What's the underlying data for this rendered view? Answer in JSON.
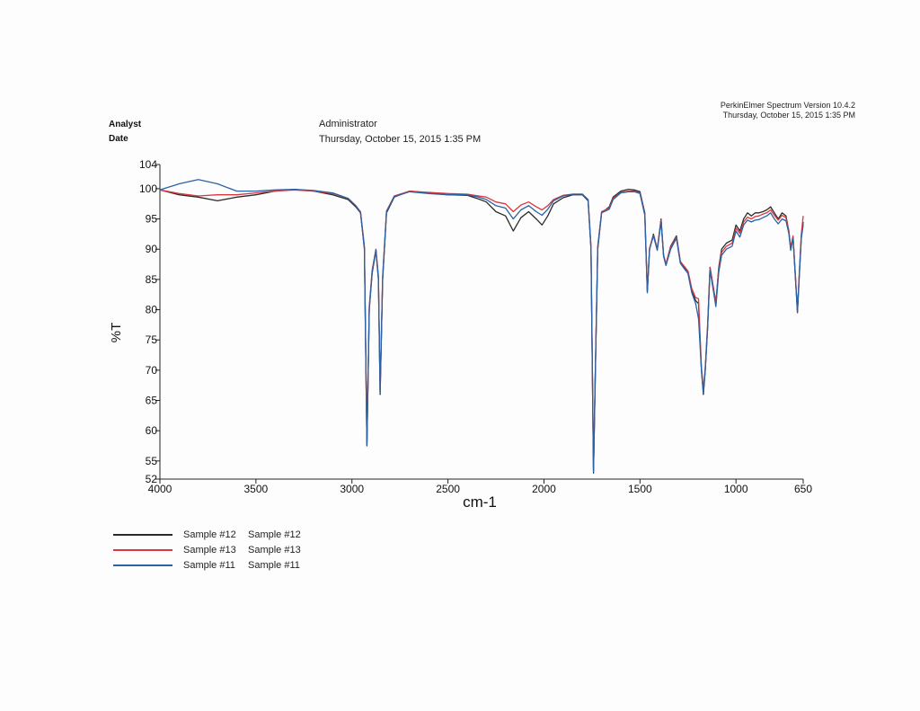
{
  "header": {
    "software": "PerkinElmer Spectrum Version 10.4.2",
    "datetime": "Thursday, October 15, 2015 1:35 PM"
  },
  "meta": {
    "analyst_label": "Analyst",
    "analyst_value": "Administrator",
    "date_label": "Date",
    "date_value": "Thursday, October 15, 2015 1:35 PM"
  },
  "colors": {
    "sample12": "#2b2b2b",
    "sample13": "#d8383f",
    "sample11": "#2a62a6"
  },
  "chart_data": {
    "type": "line",
    "title": "",
    "xlabel": "cm-1",
    "ylabel": "%T",
    "xlim": [
      4000,
      650
    ],
    "x_reversed": true,
    "ylim": [
      52,
      104
    ],
    "x_ticks": [
      4000,
      3500,
      3000,
      2500,
      2000,
      1500,
      1000,
      650
    ],
    "y_ticks": [
      52,
      55,
      60,
      65,
      70,
      75,
      80,
      85,
      90,
      95,
      100,
      104
    ],
    "grid": false,
    "legend_placement": "bottom-left",
    "series": [
      {
        "name": "Sample #12",
        "label2": "Sample #12",
        "color": "#2b2b2b",
        "points": [
          [
            4000,
            99.8
          ],
          [
            3900,
            99.0
          ],
          [
            3800,
            98.6
          ],
          [
            3700,
            98.0
          ],
          [
            3600,
            98.6
          ],
          [
            3500,
            99.0
          ],
          [
            3400,
            99.6
          ],
          [
            3300,
            99.9
          ],
          [
            3200,
            99.6
          ],
          [
            3100,
            99.0
          ],
          [
            3020,
            98.2
          ],
          [
            2980,
            97.0
          ],
          [
            2955,
            96.0
          ],
          [
            2935,
            90.0
          ],
          [
            2922,
            57.5
          ],
          [
            2910,
            80.0
          ],
          [
            2895,
            86.0
          ],
          [
            2875,
            89.8
          ],
          [
            2862,
            85.0
          ],
          [
            2853,
            66.0
          ],
          [
            2840,
            85.0
          ],
          [
            2820,
            96.0
          ],
          [
            2780,
            98.6
          ],
          [
            2700,
            99.6
          ],
          [
            2600,
            99.3
          ],
          [
            2500,
            99.0
          ],
          [
            2400,
            98.9
          ],
          [
            2340,
            98.3
          ],
          [
            2300,
            97.8
          ],
          [
            2250,
            96.2
          ],
          [
            2200,
            95.5
          ],
          [
            2160,
            93.0
          ],
          [
            2120,
            95.2
          ],
          [
            2080,
            96.2
          ],
          [
            2040,
            95.0
          ],
          [
            2010,
            94.0
          ],
          [
            1980,
            95.5
          ],
          [
            1950,
            97.5
          ],
          [
            1900,
            98.5
          ],
          [
            1850,
            99.0
          ],
          [
            1800,
            99.0
          ],
          [
            1770,
            98.0
          ],
          [
            1755,
            90.0
          ],
          [
            1742,
            53.0
          ],
          [
            1732,
            70.0
          ],
          [
            1720,
            90.0
          ],
          [
            1700,
            96.0
          ],
          [
            1660,
            97.0
          ],
          [
            1640,
            98.6
          ],
          [
            1600,
            99.6
          ],
          [
            1560,
            99.9
          ],
          [
            1530,
            99.8
          ],
          [
            1500,
            99.5
          ],
          [
            1475,
            96.0
          ],
          [
            1462,
            83.0
          ],
          [
            1450,
            90.0
          ],
          [
            1430,
            92.5
          ],
          [
            1410,
            90.0
          ],
          [
            1390,
            95.0
          ],
          [
            1377,
            89.0
          ],
          [
            1365,
            87.5
          ],
          [
            1340,
            90.5
          ],
          [
            1310,
            92.2
          ],
          [
            1290,
            88.0
          ],
          [
            1270,
            87.0
          ],
          [
            1250,
            86.0
          ],
          [
            1230,
            83.0
          ],
          [
            1210,
            81.5
          ],
          [
            1195,
            81.0
          ],
          [
            1180,
            70.0
          ],
          [
            1170,
            66.0
          ],
          [
            1160,
            70.0
          ],
          [
            1148,
            77.0
          ],
          [
            1135,
            87.0
          ],
          [
            1120,
            84.0
          ],
          [
            1105,
            81.0
          ],
          [
            1090,
            87.0
          ],
          [
            1075,
            90.0
          ],
          [
            1050,
            91.0
          ],
          [
            1020,
            91.5
          ],
          [
            1000,
            94.0
          ],
          [
            980,
            93.0
          ],
          [
            960,
            95.0
          ],
          [
            940,
            96.0
          ],
          [
            920,
            95.5
          ],
          [
            900,
            96.0
          ],
          [
            880,
            96.0
          ],
          [
            860,
            96.2
          ],
          [
            840,
            96.5
          ],
          [
            820,
            97.0
          ],
          [
            800,
            96.0
          ],
          [
            780,
            95.0
          ],
          [
            760,
            96.0
          ],
          [
            740,
            95.5
          ],
          [
            725,
            93.0
          ],
          [
            715,
            90.0
          ],
          [
            703,
            92.0
          ],
          [
            690,
            85.0
          ],
          [
            680,
            79.5
          ],
          [
            670,
            86.0
          ],
          [
            660,
            92.0
          ],
          [
            650,
            94.5
          ]
        ]
      },
      {
        "name": "Sample #13",
        "label2": "Sample #13",
        "color": "#d8383f",
        "points": [
          [
            4000,
            99.8
          ],
          [
            3900,
            99.2
          ],
          [
            3800,
            98.8
          ],
          [
            3700,
            99.0
          ],
          [
            3600,
            99.0
          ],
          [
            3500,
            99.3
          ],
          [
            3400,
            99.6
          ],
          [
            3300,
            99.8
          ],
          [
            3200,
            99.6
          ],
          [
            3100,
            99.2
          ],
          [
            3020,
            98.4
          ],
          [
            2980,
            97.2
          ],
          [
            2955,
            96.2
          ],
          [
            2935,
            90.5
          ],
          [
            2922,
            57.8
          ],
          [
            2910,
            80.5
          ],
          [
            2895,
            86.5
          ],
          [
            2875,
            90.0
          ],
          [
            2862,
            85.5
          ],
          [
            2853,
            66.5
          ],
          [
            2840,
            85.5
          ],
          [
            2820,
            96.3
          ],
          [
            2780,
            98.8
          ],
          [
            2700,
            99.6
          ],
          [
            2600,
            99.4
          ],
          [
            2500,
            99.2
          ],
          [
            2400,
            99.1
          ],
          [
            2340,
            98.8
          ],
          [
            2300,
            98.6
          ],
          [
            2250,
            97.8
          ],
          [
            2200,
            97.5
          ],
          [
            2160,
            96.2
          ],
          [
            2120,
            97.3
          ],
          [
            2080,
            97.8
          ],
          [
            2040,
            97.0
          ],
          [
            2010,
            96.5
          ],
          [
            1980,
            97.2
          ],
          [
            1950,
            98.2
          ],
          [
            1900,
            98.9
          ],
          [
            1850,
            99.1
          ],
          [
            1800,
            99.1
          ],
          [
            1770,
            98.2
          ],
          [
            1755,
            90.5
          ],
          [
            1742,
            53.5
          ],
          [
            1732,
            70.5
          ],
          [
            1720,
            90.5
          ],
          [
            1700,
            96.2
          ],
          [
            1660,
            96.8
          ],
          [
            1640,
            98.4
          ],
          [
            1600,
            99.4
          ],
          [
            1560,
            99.6
          ],
          [
            1530,
            99.6
          ],
          [
            1500,
            99.3
          ],
          [
            1475,
            95.8
          ],
          [
            1462,
            83.2
          ],
          [
            1450,
            90.2
          ],
          [
            1430,
            92.3
          ],
          [
            1410,
            90.0
          ],
          [
            1390,
            94.8
          ],
          [
            1377,
            89.0
          ],
          [
            1365,
            87.6
          ],
          [
            1340,
            90.3
          ],
          [
            1310,
            92.0
          ],
          [
            1290,
            88.0
          ],
          [
            1270,
            87.2
          ],
          [
            1250,
            86.4
          ],
          [
            1230,
            83.5
          ],
          [
            1210,
            82.0
          ],
          [
            1195,
            81.8
          ],
          [
            1180,
            70.5
          ],
          [
            1170,
            66.8
          ],
          [
            1160,
            70.5
          ],
          [
            1148,
            77.5
          ],
          [
            1135,
            87.0
          ],
          [
            1120,
            84.2
          ],
          [
            1105,
            81.2
          ],
          [
            1090,
            86.8
          ],
          [
            1075,
            89.5
          ],
          [
            1050,
            90.5
          ],
          [
            1020,
            91.0
          ],
          [
            1000,
            93.5
          ],
          [
            980,
            92.6
          ],
          [
            960,
            94.5
          ],
          [
            940,
            95.3
          ],
          [
            920,
            95.0
          ],
          [
            900,
            95.4
          ],
          [
            880,
            95.5
          ],
          [
            860,
            95.8
          ],
          [
            840,
            96.0
          ],
          [
            820,
            96.5
          ],
          [
            800,
            95.6
          ],
          [
            780,
            94.8
          ],
          [
            760,
            95.6
          ],
          [
            740,
            95.2
          ],
          [
            725,
            93.0
          ],
          [
            715,
            90.3
          ],
          [
            703,
            92.2
          ],
          [
            690,
            85.2
          ],
          [
            680,
            79.8
          ],
          [
            670,
            86.2
          ],
          [
            660,
            92.5
          ],
          [
            650,
            95.5
          ]
        ]
      },
      {
        "name": "Sample #11",
        "label2": "Sample #11",
        "color": "#2a62a6",
        "points": [
          [
            4000,
            99.8
          ],
          [
            3900,
            100.8
          ],
          [
            3800,
            101.5
          ],
          [
            3700,
            100.8
          ],
          [
            3600,
            99.6
          ],
          [
            3500,
            99.6
          ],
          [
            3400,
            99.8
          ],
          [
            3300,
            99.9
          ],
          [
            3200,
            99.7
          ],
          [
            3100,
            99.3
          ],
          [
            3020,
            98.4
          ],
          [
            2980,
            97.2
          ],
          [
            2955,
            96.0
          ],
          [
            2935,
            90.2
          ],
          [
            2922,
            57.6
          ],
          [
            2910,
            80.2
          ],
          [
            2895,
            86.2
          ],
          [
            2875,
            89.9
          ],
          [
            2862,
            85.2
          ],
          [
            2853,
            66.2
          ],
          [
            2840,
            85.2
          ],
          [
            2820,
            96.2
          ],
          [
            2780,
            98.7
          ],
          [
            2700,
            99.5
          ],
          [
            2600,
            99.2
          ],
          [
            2500,
            99.0
          ],
          [
            2400,
            99.0
          ],
          [
            2340,
            98.6
          ],
          [
            2300,
            98.2
          ],
          [
            2250,
            97.2
          ],
          [
            2200,
            96.8
          ],
          [
            2160,
            95.0
          ],
          [
            2120,
            96.5
          ],
          [
            2080,
            97.2
          ],
          [
            2040,
            96.2
          ],
          [
            2010,
            95.6
          ],
          [
            1980,
            96.6
          ],
          [
            1950,
            98.0
          ],
          [
            1900,
            98.8
          ],
          [
            1850,
            99.1
          ],
          [
            1800,
            99.1
          ],
          [
            1770,
            98.1
          ],
          [
            1755,
            90.2
          ],
          [
            1742,
            53.2
          ],
          [
            1732,
            70.2
          ],
          [
            1720,
            90.2
          ],
          [
            1700,
            96.0
          ],
          [
            1660,
            96.6
          ],
          [
            1640,
            98.2
          ],
          [
            1600,
            99.3
          ],
          [
            1560,
            99.5
          ],
          [
            1530,
            99.5
          ],
          [
            1500,
            99.2
          ],
          [
            1475,
            95.6
          ],
          [
            1462,
            82.8
          ],
          [
            1450,
            90.0
          ],
          [
            1430,
            92.2
          ],
          [
            1410,
            89.8
          ],
          [
            1390,
            94.6
          ],
          [
            1377,
            88.8
          ],
          [
            1365,
            87.3
          ],
          [
            1340,
            90.0
          ],
          [
            1310,
            91.8
          ],
          [
            1290,
            87.7
          ],
          [
            1270,
            86.8
          ],
          [
            1250,
            86.0
          ],
          [
            1230,
            82.8
          ],
          [
            1210,
            81.0
          ],
          [
            1195,
            78.5
          ],
          [
            1180,
            70.2
          ],
          [
            1170,
            66.3
          ],
          [
            1160,
            70.2
          ],
          [
            1148,
            77.0
          ],
          [
            1135,
            86.5
          ],
          [
            1120,
            83.6
          ],
          [
            1105,
            80.5
          ],
          [
            1090,
            86.2
          ],
          [
            1075,
            89.0
          ],
          [
            1050,
            90.0
          ],
          [
            1020,
            90.5
          ],
          [
            1000,
            93.0
          ],
          [
            980,
            92.0
          ],
          [
            960,
            94.0
          ],
          [
            940,
            94.8
          ],
          [
            920,
            94.5
          ],
          [
            900,
            94.8
          ],
          [
            880,
            94.9
          ],
          [
            860,
            95.2
          ],
          [
            840,
            95.5
          ],
          [
            820,
            96.0
          ],
          [
            800,
            95.0
          ],
          [
            780,
            94.2
          ],
          [
            760,
            95.0
          ],
          [
            740,
            94.7
          ],
          [
            725,
            92.6
          ],
          [
            715,
            89.8
          ],
          [
            703,
            91.8
          ],
          [
            690,
            84.8
          ],
          [
            680,
            79.6
          ],
          [
            670,
            85.6
          ],
          [
            660,
            91.8
          ],
          [
            650,
            94.0
          ]
        ]
      }
    ]
  }
}
